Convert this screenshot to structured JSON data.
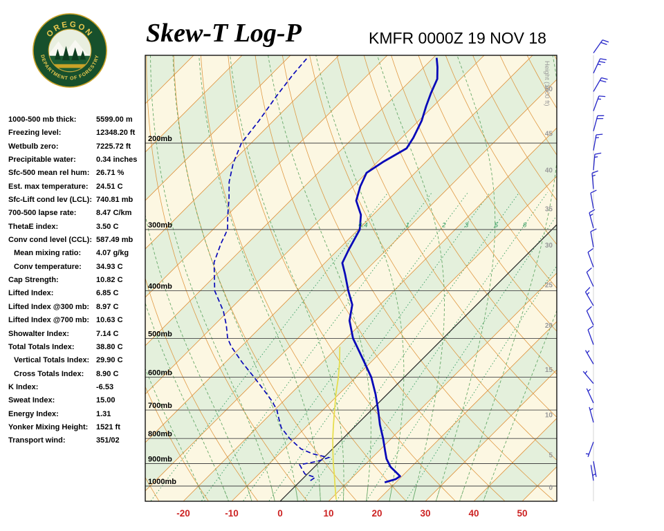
{
  "header": {
    "title": "Skew-T Log-P",
    "station": "KMFR 0000Z 19 NOV 18",
    "logo": {
      "top_text": "OREGON",
      "bottom_text": "DEPARTMENT OF FORESTRY"
    }
  },
  "stats": [
    {
      "label": "1000-500 mb thick:",
      "value": "5599.00 m",
      "indent": false
    },
    {
      "label": "Freezing level:",
      "value": "12348.20 ft",
      "indent": false
    },
    {
      "label": "Wetbulb zero:",
      "value": "7225.72 ft",
      "indent": false
    },
    {
      "label": "Precipitable water:",
      "value": "0.34 inches",
      "indent": false
    },
    {
      "label": "Sfc-500 mean rel hum:",
      "value": "26.71 %",
      "indent": false
    },
    {
      "label": "Est. max temperature:",
      "value": "24.51 C",
      "indent": false
    },
    {
      "label": "Sfc-Lift cond lev (LCL):",
      "value": "740.81 mb",
      "indent": false
    },
    {
      "label": "700-500 lapse rate:",
      "value": "8.47 C/km",
      "indent": false
    },
    {
      "label": "ThetaE index:",
      "value": "3.50 C",
      "indent": false
    },
    {
      "label": "Conv cond level (CCL):",
      "value": "587.49 mb",
      "indent": false
    },
    {
      "label": "Mean mixing ratio:",
      "value": "4.07 g/kg",
      "indent": true
    },
    {
      "label": "Conv temperature:",
      "value": "34.93 C",
      "indent": true
    },
    {
      "label": "Cap Strength:",
      "value": "10.82 C",
      "indent": false
    },
    {
      "label": "Lifted Index:",
      "value": "6.85 C",
      "indent": false
    },
    {
      "label": "Lifted Index @300 mb:",
      "value": "8.97 C",
      "indent": false
    },
    {
      "label": "Lifted Index @700 mb:",
      "value": "10.63 C",
      "indent": false
    },
    {
      "label": "Showalter Index:",
      "value": "7.14 C",
      "indent": false
    },
    {
      "label": "Total Totals Index:",
      "value": "38.80 C",
      "indent": false
    },
    {
      "label": "Vertical Totals Index:",
      "value": "29.90 C",
      "indent": true
    },
    {
      "label": "Cross Totals Index:",
      "value": "8.90 C",
      "indent": true
    },
    {
      "label": "K Index:",
      "value": "-6.53",
      "indent": false
    },
    {
      "label": "Sweat Index:",
      "value": "15.00",
      "indent": false
    },
    {
      "label": "Energy Index:",
      "value": "1.31",
      "indent": false
    },
    {
      "label": "Yonker Mixing Height:",
      "value": "1521 ft",
      "indent": false
    },
    {
      "label": "Transport wind:",
      "value": "351/02",
      "indent": false
    }
  ],
  "chart_data": {
    "type": "line",
    "title": "Skew-T Log-P",
    "station": "KMFR 0000Z 19 NOV 18",
    "x_axis": {
      "ticks": [
        -20,
        -10,
        0,
        10,
        20,
        30,
        40,
        50
      ],
      "unit": "C"
    },
    "pressure_levels_mb": [
      200,
      300,
      400,
      500,
      600,
      700,
      800,
      900,
      1000
    ],
    "pressure_label_suffix": "mb",
    "pressure_range_mb": [
      132,
      1072
    ],
    "height_axis": {
      "label": "Height (1000 ft)",
      "ticks": [
        {
          "label": "50",
          "p": 155
        },
        {
          "label": "45",
          "p": 191
        },
        {
          "label": "40",
          "p": 227
        },
        {
          "label": "35",
          "p": 272
        },
        {
          "label": "30",
          "p": 323
        },
        {
          "label": "25",
          "p": 389
        },
        {
          "label": "20",
          "p": 470
        },
        {
          "label": "15",
          "p": 579
        },
        {
          "label": "10",
          "p": 716
        },
        {
          "label": "5",
          "p": 864
        },
        {
          "label": "0",
          "p": 1007
        }
      ]
    },
    "mixing_ratio_lines_gkg": [
      0.4,
      1,
      2,
      3,
      5,
      8,
      12,
      20
    ],
    "mixing_ratio_labels": [
      "0.4",
      "1",
      "2",
      "3",
      "5",
      "8"
    ],
    "mixing_ratio_label_p": 293,
    "isotherms_c": {
      "min": -150,
      "max": 60,
      "step": 10
    },
    "dry_adiabats_c": {
      "min": -60,
      "max": 150,
      "step": 10
    },
    "moist_adiabats_c": {
      "min": -20,
      "max": 40,
      "step": 5
    },
    "temperature_profile": [
      [
        983,
        17.7
      ],
      [
        968,
        19.3
      ],
      [
        955,
        19.6
      ],
      [
        940,
        18.2
      ],
      [
        914,
        15.7
      ],
      [
        880,
        13.2
      ],
      [
        850,
        11.4
      ],
      [
        800,
        8.3
      ],
      [
        750,
        4.8
      ],
      [
        700,
        1.4
      ],
      [
        650,
        -2.4
      ],
      [
        600,
        -6.8
      ],
      [
        550,
        -12.4
      ],
      [
        500,
        -18.6
      ],
      [
        460,
        -23.0
      ],
      [
        427,
        -25.7
      ],
      [
        400,
        -29.4
      ],
      [
        370,
        -33.5
      ],
      [
        351,
        -36.4
      ],
      [
        330,
        -37.8
      ],
      [
        300,
        -39.7
      ],
      [
        280,
        -42.5
      ],
      [
        262,
        -46.4
      ],
      [
        245,
        -48.5
      ],
      [
        230,
        -50.0
      ],
      [
        218,
        -48.8
      ],
      [
        205,
        -46.8
      ],
      [
        195,
        -47.6
      ],
      [
        180,
        -49.4
      ],
      [
        168,
        -51.5
      ],
      [
        158,
        -53.2
      ],
      [
        148,
        -54.8
      ],
      [
        140,
        -57.2
      ],
      [
        134,
        -59.3
      ]
    ],
    "dewpoint_profile": [
      [
        975,
        2.0
      ],
      [
        960,
        2.3
      ],
      [
        945,
        -0.5
      ],
      [
        925,
        -2.0
      ],
      [
        905,
        -3.5
      ],
      [
        890,
        -0.5
      ],
      [
        875,
        1.0
      ],
      [
        860,
        -3.0
      ],
      [
        840,
        -6.5
      ],
      [
        800,
        -11.0
      ],
      [
        760,
        -15.0
      ],
      [
        720,
        -18.0
      ],
      [
        700,
        -19.5
      ],
      [
        670,
        -22.5
      ],
      [
        640,
        -26.0
      ],
      [
        600,
        -31.0
      ],
      [
        560,
        -36.5
      ],
      [
        520,
        -42.0
      ],
      [
        500,
        -44.5
      ],
      [
        470,
        -47.5
      ],
      [
        440,
        -51.0
      ],
      [
        400,
        -57.0
      ],
      [
        370,
        -60.5
      ],
      [
        350,
        -63.0
      ],
      [
        320,
        -65.5
      ],
      [
        300,
        -67.0
      ],
      [
        280,
        -70.0
      ],
      [
        260,
        -73.0
      ],
      [
        240,
        -76.5
      ],
      [
        220,
        -79.5
      ],
      [
        200,
        -82.0
      ],
      [
        180,
        -83.0
      ],
      [
        160,
        -84.5
      ],
      [
        145,
        -85.5
      ],
      [
        134,
        -86.0
      ]
    ],
    "parcel_trace": [
      [
        1065,
        11.2
      ],
      [
        1000,
        8.2
      ],
      [
        950,
        5.8
      ],
      [
        900,
        3.2
      ],
      [
        850,
        0.6
      ],
      [
        800,
        -2.1
      ],
      [
        750,
        -4.8
      ],
      [
        700,
        -7.6
      ],
      [
        650,
        -10.6
      ],
      [
        600,
        -13.6
      ],
      [
        560,
        -16.4
      ],
      [
        520,
        -19.6
      ]
    ],
    "wind_barbs_kt": [
      {
        "p": 131,
        "dir": 35,
        "spd": 20
      },
      {
        "p": 144,
        "dir": 25,
        "spd": 25
      },
      {
        "p": 157,
        "dir": 30,
        "spd": 20
      },
      {
        "p": 172,
        "dir": 20,
        "spd": 15
      },
      {
        "p": 189,
        "dir": 15,
        "spd": 20
      },
      {
        "p": 207,
        "dir": 10,
        "spd": 15
      },
      {
        "p": 227,
        "dir": 5,
        "spd": 15
      },
      {
        "p": 248,
        "dir": 355,
        "spd": 15
      },
      {
        "p": 272,
        "dir": 350,
        "spd": 10
      },
      {
        "p": 298,
        "dir": 345,
        "spd": 15
      },
      {
        "p": 326,
        "dir": 350,
        "spd": 10
      },
      {
        "p": 358,
        "dir": 340,
        "spd": 10
      },
      {
        "p": 392,
        "dir": 335,
        "spd": 10
      },
      {
        "p": 429,
        "dir": 330,
        "spd": 15
      },
      {
        "p": 470,
        "dir": 335,
        "spd": 10
      },
      {
        "p": 515,
        "dir": 340,
        "spd": 10
      },
      {
        "p": 564,
        "dir": 330,
        "spd": 5
      },
      {
        "p": 618,
        "dir": 320,
        "spd": 5
      },
      {
        "p": 677,
        "dir": 335,
        "spd": 5
      },
      {
        "p": 742,
        "dir": 345,
        "spd": 5
      },
      {
        "p": 813,
        "dir": 200,
        "spd": 5
      },
      {
        "p": 890,
        "dir": 170,
        "spd": 3
      },
      {
        "p": 975,
        "dir": 351,
        "spd": 2
      }
    ],
    "colors": {
      "temperature": "#0808b8",
      "dewpoint": "#0808b8",
      "parcel": "#e6de4e",
      "isotherm": "#e09440",
      "dry_adiabat": "#dd8f33",
      "moist_adiabat": "#57a05a",
      "mixing_ratio": "#2f9a5d",
      "isobar": "#444444",
      "zero_isotherm": "#222222",
      "band_green": "#e4f0dc",
      "band_cream": "#fcf7e2",
      "axis_red": "#cc2222",
      "wind_barb": "#2424c8",
      "height_label": "#999999"
    }
  }
}
